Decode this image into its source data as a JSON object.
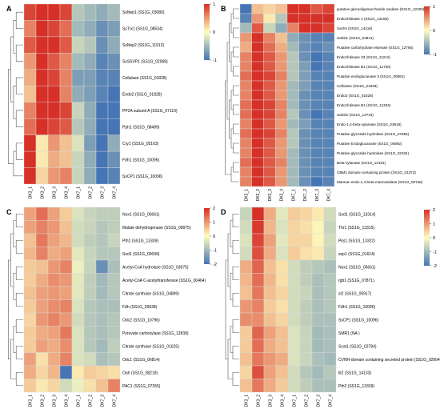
{
  "chart_data": [
    {
      "panel": "A",
      "type": "heatmap",
      "columns": [
        "DK3_1",
        "DK3_2",
        "DK3_3",
        "DK3_4",
        "DK7_1",
        "DK7_2",
        "DK7_3",
        "DK7_4"
      ],
      "rows": [
        "SsNep1 (SS1G_03080)",
        "SsTrx1 (SS1G_08534)",
        "SsNep2 (SS1G_11912)",
        "SsSSVP1 (SS1G_02068)",
        "Cellulase (SS1G_01828)",
        "Endo2 (SS1G_01828)",
        "PP2A subunit A (SS1G_07119)",
        "Pph1 (SS1G_08489)",
        "Cry1 (SS1G_05163)",
        "Fdh1 (SS1G_10096)",
        "SsCP1 (SS1G_10096)"
      ],
      "values": [
        [
          0.9,
          1.1,
          1.0,
          0.9,
          -0.4,
          -0.5,
          -0.6,
          -0.5
        ],
        [
          0.6,
          1.2,
          0.9,
          0.7,
          -0.5,
          -0.6,
          -0.8,
          -0.7
        ],
        [
          0.8,
          1.2,
          1.0,
          0.8,
          -0.3,
          -0.4,
          -0.8,
          -0.6
        ],
        [
          0.5,
          1.1,
          0.8,
          0.6,
          -0.5,
          -0.6,
          -0.9,
          -0.8
        ],
        [
          0.4,
          1.5,
          0.9,
          0.6,
          -0.7,
          -0.7,
          -0.9,
          -0.9
        ],
        [
          0.3,
          1.7,
          1.0,
          0.6,
          -0.6,
          -0.7,
          -0.9,
          -1.0
        ],
        [
          0.6,
          1.3,
          1.1,
          0.9,
          -0.3,
          -0.6,
          -1.0,
          -1.2
        ],
        [
          0.7,
          1.0,
          0.9,
          0.8,
          -0.4,
          -0.6,
          -1.0,
          -1.2
        ],
        [
          1.9,
          0.1,
          0.5,
          0.3,
          -0.2,
          -0.7,
          -1.5,
          -0.6
        ],
        [
          1.8,
          0.1,
          0.4,
          0.3,
          -0.3,
          -0.6,
          -1.2,
          -0.8
        ],
        [
          1.5,
          0.2,
          0.5,
          0.6,
          -0.3,
          -0.6,
          -1.1,
          -0.9
        ]
      ],
      "scale": [
        -1,
        0,
        1
      ],
      "scale_ticks": [
        "1",
        "0",
        "-1"
      ],
      "colors": [
        "#4575b4",
        "#fffebf",
        "#d73027"
      ]
    },
    {
      "panel": "B",
      "type": "heatmap",
      "columns": [
        "DK3_1",
        "DK3_2",
        "DK3_3",
        "DK3_4",
        "DK7_1",
        "DK7_2",
        "DK7_3",
        "DK7_4"
      ],
      "rows": [
        "putative glucooligosaccharide oxidase (SS1G_12200)",
        "Endochitinase A (SS1G_13155)",
        "Sachs (SS1G_14116)",
        "Sahsl1 (SS1G_04841)",
        "Putative carbohydrate esterase (SS1G_12765)",
        "Endochitinase 33 (SS1G_11212)",
        "Endochitinase B1 (SS1G_11700)",
        "Putative endoglucanase II (SS1G_00891)",
        "Cellulase (SS1G_01828)",
        "Endo2 (SS1G_01828)",
        "Endochitinase B1 (SS1G_11304)",
        "Sahsl2 (SS1G_13734)",
        "Endo-1,4-beta-xylanase (SS1G_03618)",
        "Putative glycoside hydrolase (SS1G_07656)",
        "Putative Endoglucanase (SS1G_00892)",
        "Putative glycoside hydrolase (SS1G_02334)",
        "Beta-xylanase (SS1G_12191)",
        "CBM1 domain-containing protein (SS1G_01373)",
        "Mannan endo-1,4-beta-mannosidase (SS1G_00746)"
      ],
      "values": [
        [
          -1.4,
          0.3,
          0.2,
          0.3,
          1.2,
          1.0,
          0.8,
          0.9
        ],
        [
          -0.9,
          0.5,
          0.1,
          -0.4,
          1.3,
          1.2,
          1.1,
          1.0
        ],
        [
          -0.5,
          0.8,
          -0.3,
          -0.6,
          0.6,
          1.0,
          1.1,
          0.9
        ],
        [
          0.5,
          1.3,
          0.6,
          0.3,
          -0.6,
          -0.8,
          -0.9,
          -0.9
        ],
        [
          0.4,
          1.1,
          0.7,
          0.4,
          -0.5,
          -0.8,
          -0.9,
          -0.8
        ],
        [
          0.6,
          1.2,
          0.8,
          0.5,
          -0.4,
          -0.8,
          -1.0,
          -0.9
        ],
        [
          0.6,
          1.3,
          0.8,
          0.5,
          -0.4,
          -0.7,
          -1.0,
          -0.9
        ],
        [
          0.7,
          1.2,
          0.9,
          0.6,
          -0.4,
          -0.7,
          -0.9,
          -0.9
        ],
        [
          0.6,
          1.5,
          0.8,
          0.5,
          -0.5,
          -0.7,
          -0.9,
          -0.9
        ],
        [
          0.6,
          1.6,
          0.8,
          0.5,
          -0.5,
          -0.8,
          -0.9,
          -0.9
        ],
        [
          0.7,
          1.3,
          0.9,
          0.6,
          -0.5,
          -0.8,
          -0.9,
          -0.9
        ],
        [
          0.7,
          1.3,
          0.9,
          0.6,
          -0.4,
          -0.8,
          -1.0,
          -0.9
        ],
        [
          0.6,
          1.2,
          0.8,
          0.5,
          -0.5,
          -0.7,
          -0.9,
          -0.9
        ],
        [
          0.7,
          1.2,
          0.9,
          0.6,
          -0.4,
          -0.8,
          -0.9,
          -0.9
        ],
        [
          0.6,
          1.1,
          0.8,
          0.5,
          -0.4,
          -0.8,
          -0.9,
          -0.9
        ],
        [
          0.6,
          1.2,
          0.8,
          0.5,
          -0.5,
          -0.8,
          -0.9,
          -0.9
        ],
        [
          0.7,
          1.2,
          0.8,
          0.6,
          -0.5,
          -0.8,
          -0.9,
          -0.9
        ],
        [
          0.6,
          1.1,
          0.8,
          0.5,
          -0.5,
          -0.8,
          -0.9,
          -0.9
        ],
        [
          0.6,
          1.0,
          0.8,
          0.5,
          -0.5,
          -0.8,
          -1.0,
          -0.9
        ]
      ],
      "scale": [
        -1,
        0,
        1
      ],
      "scale_ticks": [
        "1",
        "0",
        "-1"
      ],
      "colors": [
        "#4575b4",
        "#fffebf",
        "#d73027"
      ]
    },
    {
      "panel": "C",
      "type": "heatmap",
      "columns": [
        "DK3_1",
        "DK3_2",
        "DK3_3",
        "DK3_4",
        "DK7_1",
        "DK7_2",
        "DK7_3",
        "DK7_4"
      ],
      "rows": [
        "Nox1 (SS1G_05661)",
        "Malate dehydrogenase (SS1G_08975)",
        "Pth2 (SS1G_13339)",
        "Sod1 (SS1G_00699)",
        "Acetyl-CoA hydrolase (SS1G_03975)",
        "Acetyl-CoA C-acetyltransferase (SS1G_00464)",
        "Citrate synthase (SS1G_04899)",
        "Fdh (SS1G_09038)",
        "Odc2 (SS1G_10796)",
        "Pyruvate carboxylase (SS1G_12839)",
        "Citrate synthase (SS1G_01625)",
        "Odc1 (SS1G_06814)",
        "Oah (SS1G_08218)",
        "PAC1 (SS1G_07355)"
      ],
      "values": [
        [
          0.9,
          1.4,
          0.9,
          0.5,
          -0.4,
          -0.6,
          -0.7,
          -0.7
        ],
        [
          0.9,
          1.2,
          1.0,
          0.6,
          -0.5,
          -0.6,
          -0.8,
          -0.7
        ],
        [
          0.6,
          1.3,
          0.9,
          0.7,
          -0.5,
          -0.7,
          -0.8,
          -0.6
        ],
        [
          0.7,
          1.2,
          0.8,
          0.9,
          -0.3,
          -0.6,
          -0.8,
          -0.8
        ],
        [
          0.5,
          0.6,
          1.0,
          1.2,
          -0.2,
          -0.6,
          -1.6,
          -0.9
        ],
        [
          0.5,
          0.8,
          1.1,
          1.0,
          -0.3,
          -0.7,
          -1.0,
          -0.8
        ],
        [
          0.6,
          0.9,
          1.0,
          0.9,
          -0.3,
          -0.7,
          -1.0,
          -0.8
        ],
        [
          0.5,
          0.9,
          1.1,
          1.2,
          -0.4,
          -0.8,
          -0.9,
          -0.9
        ],
        [
          0.4,
          1.0,
          1.2,
          1.0,
          -0.5,
          -0.8,
          -0.9,
          -0.8
        ],
        [
          0.5,
          0.8,
          0.9,
          1.3,
          -0.4,
          -0.8,
          -0.9,
          -0.8
        ],
        [
          0.5,
          0.9,
          0.8,
          1.1,
          -0.4,
          -0.8,
          -1.0,
          -0.7
        ],
        [
          0.9,
          0.3,
          0.8,
          1.2,
          -0.4,
          -0.5,
          -0.9,
          -0.8
        ],
        [
          0.8,
          0.4,
          0.7,
          -2.0,
          0.2,
          0.5,
          0.4,
          0.3
        ],
        [
          0.5,
          0.2,
          0.4,
          -0.5,
          -0.2,
          0.3,
          0.6,
          1.2
        ]
      ],
      "scale": [
        -2,
        0,
        2
      ],
      "scale_ticks": [
        "2",
        "1",
        "0",
        "-1",
        "-2"
      ],
      "colors": [
        "#4575b4",
        "#fffebf",
        "#d73027"
      ]
    },
    {
      "panel": "D",
      "type": "heatmap",
      "columns": [
        "DK3_1",
        "DK3_2",
        "DK3_3",
        "DK3_4",
        "DK7_1",
        "DK7_2",
        "DK7_3",
        "DK7_4"
      ],
      "rows": [
        "Sod1 (SS1G_13314)",
        "Thr1 (SS1G_13315)",
        "Pks1 (SS1G_13322)",
        "sop1 (SS1G_01614)",
        "Nox1 (SS1G_05661)",
        "rgb1 (SS1G_07871)",
        "sl2 (SS1G_05917)",
        "Fdh1 (SS1G_10096)",
        "SsCP1 (SS1G_10096)",
        "SMR1 (NA )",
        "Scat1 (SS1G_02784)",
        "CVNH-domain containing secreted protein (SS1G_02904)",
        "lit2 (SS1G_14133)",
        "Pth2 (SS1G_13339)"
      ],
      "values": [
        [
          -0.6,
          2.0,
          0.8,
          -0.3,
          0.5,
          0.4,
          0.2,
          -0.5
        ],
        [
          -0.5,
          1.9,
          0.7,
          -0.4,
          0.4,
          0.3,
          0.1,
          -0.6
        ],
        [
          -0.4,
          1.8,
          0.9,
          -0.3,
          0.4,
          0.4,
          0.1,
          -0.5
        ],
        [
          -0.5,
          1.7,
          0.8,
          -0.4,
          0.5,
          0.3,
          0.2,
          -0.6
        ],
        [
          0.8,
          1.5,
          0.6,
          0.3,
          -0.5,
          -0.7,
          -0.8,
          -0.9
        ],
        [
          0.7,
          1.4,
          0.7,
          0.3,
          -0.5,
          -0.7,
          -0.9,
          -0.8
        ],
        [
          0.6,
          1.3,
          0.6,
          0.4,
          -0.5,
          -0.6,
          -0.9,
          -0.8
        ],
        [
          1.0,
          1.2,
          0.5,
          0.3,
          -0.5,
          -0.7,
          -0.9,
          -0.8
        ],
        [
          1.1,
          1.1,
          0.6,
          0.4,
          -0.5,
          -0.7,
          -0.9,
          -0.9
        ],
        [
          0.5,
          1.5,
          0.9,
          0.6,
          -0.4,
          -0.6,
          -1.0,
          -0.9
        ],
        [
          0.5,
          1.4,
          0.8,
          0.6,
          -0.4,
          -0.6,
          -1.0,
          -0.9
        ],
        [
          0.6,
          1.3,
          1.0,
          0.8,
          -0.4,
          -0.6,
          -0.9,
          -1.0
        ],
        [
          0.4,
          1.7,
          0.9,
          0.6,
          -0.5,
          -0.8,
          -1.0,
          -0.8
        ],
        [
          0.6,
          1.3,
          0.8,
          0.5,
          -0.5,
          -0.7,
          -0.9,
          -0.9
        ]
      ],
      "scale": [
        -2,
        0,
        2
      ],
      "scale_ticks": [
        "2",
        "1",
        "0",
        "-1",
        "-2"
      ],
      "colors": [
        "#4575b4",
        "#fffebf",
        "#d73027"
      ]
    }
  ]
}
